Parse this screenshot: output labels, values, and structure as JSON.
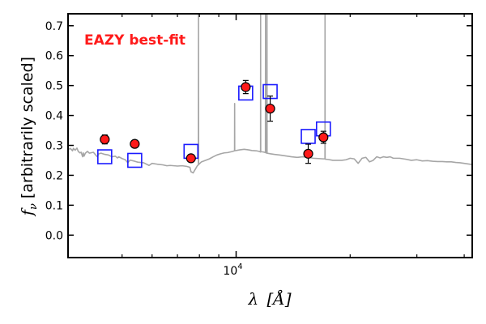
{
  "chart_data": {
    "type": "scatter",
    "title": "",
    "annotation": "EAZY best-fit",
    "xlabel": "λ [Å]",
    "xlabel_symbol": "λ",
    "xlabel_unit": "[Å]",
    "ylabel": "fν [arbitrarily scaled]",
    "ylabel_symbol": "f",
    "ylabel_subscript": "ν",
    "ylabel_text": "[arbitrarily scaled]",
    "xscale": "log",
    "xlim": [
      3600,
      42000
    ],
    "ylim": [
      -0.075,
      0.74
    ],
    "yticks": [
      0.0,
      0.1,
      0.2,
      0.3,
      0.4,
      0.5,
      0.6,
      0.7
    ],
    "ytick_labels": [
      "0.0",
      "0.1",
      "0.2",
      "0.3",
      "0.4",
      "0.5",
      "0.6",
      "0.7"
    ],
    "xtick_major": 10000,
    "xtick_major_base": "10",
    "xtick_major_exp": "4",
    "xticks_minor": [
      5000,
      6000,
      7000,
      8000,
      9000,
      20000,
      30000,
      40000
    ],
    "observed": {
      "name": "Observed photometry",
      "color": "#ff1a1a",
      "points": [
        {
          "x": 4500,
          "y": 0.32,
          "err": 0.015
        },
        {
          "x": 5400,
          "y": 0.305,
          "err": 0.008
        },
        {
          "x": 7600,
          "y": 0.257,
          "err": 0.008
        },
        {
          "x": 10600,
          "y": 0.495,
          "err": 0.022
        },
        {
          "x": 12300,
          "y": 0.423,
          "err": 0.042
        },
        {
          "x": 15500,
          "y": 0.272,
          "err": 0.032
        },
        {
          "x": 17000,
          "y": 0.327,
          "err": 0.02
        }
      ]
    },
    "model_photometry": {
      "name": "Model photometry",
      "color": "#1a1aff",
      "points": [
        {
          "x": 4500,
          "y": 0.262
        },
        {
          "x": 5400,
          "y": 0.25
        },
        {
          "x": 7600,
          "y": 0.28
        },
        {
          "x": 10600,
          "y": 0.475
        },
        {
          "x": 12300,
          "y": 0.48
        },
        {
          "x": 15500,
          "y": 0.33
        },
        {
          "x": 17000,
          "y": 0.355
        }
      ]
    },
    "spectrum": {
      "name": "EAZY best-fit template",
      "color": "#a6a6a6",
      "points": [
        [
          3600,
          0.286
        ],
        [
          3650,
          0.29
        ],
        [
          3700,
          0.282
        ],
        [
          3720,
          0.29
        ],
        [
          3760,
          0.284
        ],
        [
          3800,
          0.291
        ],
        [
          3830,
          0.28
        ],
        [
          3870,
          0.275
        ],
        [
          3900,
          0.277
        ],
        [
          3933,
          0.262
        ],
        [
          3950,
          0.275
        ],
        [
          3968,
          0.264
        ],
        [
          4000,
          0.274
        ],
        [
          4050,
          0.28
        ],
        [
          4100,
          0.274
        ],
        [
          4200,
          0.277
        ],
        [
          4300,
          0.262
        ],
        [
          4340,
          0.272
        ],
        [
          4400,
          0.274
        ],
        [
          4500,
          0.27
        ],
        [
          4600,
          0.268
        ],
        [
          4700,
          0.262
        ],
        [
          4800,
          0.264
        ],
        [
          4861,
          0.258
        ],
        [
          4900,
          0.262
        ],
        [
          5000,
          0.256
        ],
        [
          5100,
          0.252
        ],
        [
          5175,
          0.242
        ],
        [
          5250,
          0.251
        ],
        [
          5400,
          0.247
        ],
        [
          5500,
          0.244
        ],
        [
          5700,
          0.242
        ],
        [
          5890,
          0.233
        ],
        [
          6000,
          0.24
        ],
        [
          6200,
          0.237
        ],
        [
          6400,
          0.235
        ],
        [
          6563,
          0.232
        ],
        [
          6700,
          0.233
        ],
        [
          7000,
          0.231
        ],
        [
          7200,
          0.232
        ],
        [
          7400,
          0.23
        ],
        [
          7550,
          0.227
        ],
        [
          7600,
          0.212
        ],
        [
          7700,
          0.208
        ],
        [
          7800,
          0.22
        ],
        [
          7900,
          0.232
        ],
        [
          7950,
          0.235
        ],
        [
          7957,
          0.74
        ],
        [
          7962,
          0.236
        ],
        [
          8100,
          0.245
        ],
        [
          8300,
          0.25
        ],
        [
          8500,
          0.255
        ],
        [
          8700,
          0.262
        ],
        [
          8900,
          0.268
        ],
        [
          9100,
          0.272
        ],
        [
          9300,
          0.275
        ],
        [
          9500,
          0.276
        ],
        [
          9800,
          0.28
        ],
        [
          9905,
          0.282
        ],
        [
          9910,
          0.44
        ],
        [
          9915,
          0.282
        ],
        [
          10200,
          0.285
        ],
        [
          10500,
          0.287
        ],
        [
          10800,
          0.285
        ],
        [
          11000,
          0.283
        ],
        [
          11300,
          0.282
        ],
        [
          11500,
          0.28
        ],
        [
          11600,
          0.278
        ],
        [
          11605,
          0.74
        ],
        [
          11612,
          0.279
        ],
        [
          11800,
          0.278
        ],
        [
          11950,
          0.276
        ],
        [
          11957,
          0.74
        ],
        [
          11963,
          0.276
        ],
        [
          12000,
          0.275
        ],
        [
          12057,
          0.274
        ],
        [
          12064,
          0.74
        ],
        [
          12071,
          0.274
        ],
        [
          12300,
          0.272
        ],
        [
          12600,
          0.27
        ],
        [
          13000,
          0.268
        ],
        [
          13500,
          0.265
        ],
        [
          14000,
          0.262
        ],
        [
          14500,
          0.26
        ],
        [
          15000,
          0.262
        ],
        [
          15500,
          0.26
        ],
        [
          16000,
          0.257
        ],
        [
          16500,
          0.256
        ],
        [
          17000,
          0.255
        ],
        [
          17160,
          0.255
        ],
        [
          17167,
          0.74
        ],
        [
          17175,
          0.254
        ],
        [
          17500,
          0.253
        ],
        [
          18000,
          0.25
        ],
        [
          18500,
          0.25
        ],
        [
          19000,
          0.25
        ],
        [
          19500,
          0.252
        ],
        [
          20000,
          0.257
        ],
        [
          20500,
          0.255
        ],
        [
          21000,
          0.24
        ],
        [
          21500,
          0.257
        ],
        [
          22000,
          0.26
        ],
        [
          22500,
          0.245
        ],
        [
          23000,
          0.25
        ],
        [
          23500,
          0.262
        ],
        [
          24000,
          0.258
        ],
        [
          24500,
          0.262
        ],
        [
          25000,
          0.26
        ],
        [
          25500,
          0.262
        ],
        [
          26000,
          0.257
        ],
        [
          27000,
          0.257
        ],
        [
          28000,
          0.254
        ],
        [
          29000,
          0.25
        ],
        [
          30000,
          0.252
        ],
        [
          31000,
          0.248
        ],
        [
          32000,
          0.249
        ],
        [
          33000,
          0.247
        ],
        [
          34000,
          0.246
        ],
        [
          35000,
          0.246
        ],
        [
          36000,
          0.245
        ],
        [
          37000,
          0.245
        ],
        [
          38000,
          0.243
        ],
        [
          39000,
          0.242
        ],
        [
          40000,
          0.24
        ],
        [
          41000,
          0.238
        ],
        [
          42000,
          0.236
        ]
      ]
    }
  }
}
